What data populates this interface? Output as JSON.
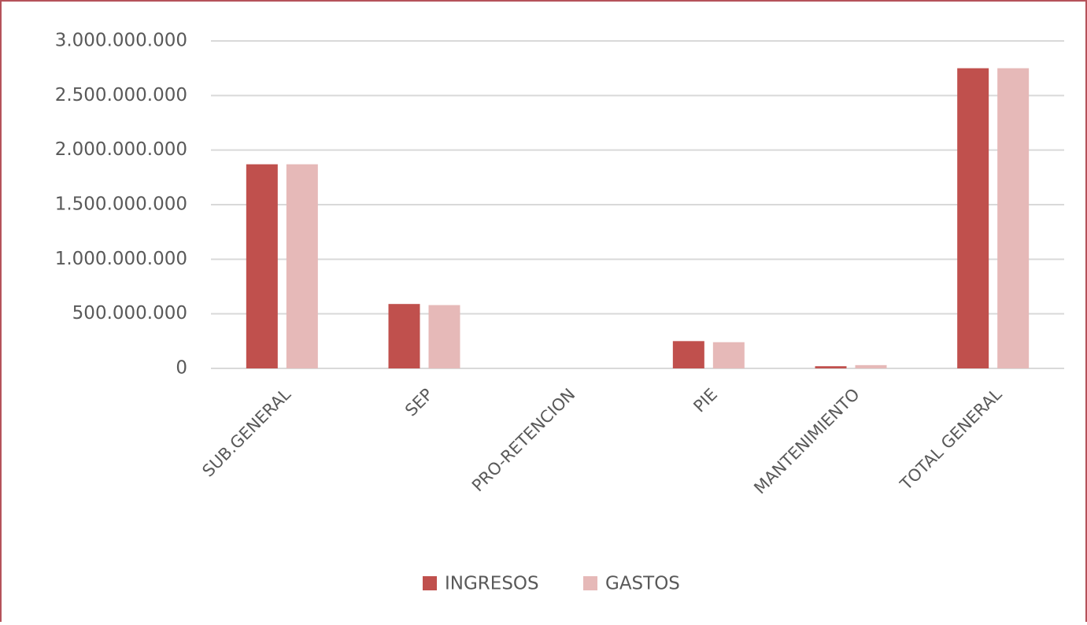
{
  "chart_data": {
    "type": "bar",
    "categories": [
      "SUB.GENERAL",
      "SEP",
      "PRO-RETENCION",
      "PIE",
      "MANTENIMIENTO",
      "TOTAL GENERAL"
    ],
    "series": [
      {
        "name": "INGRESOS",
        "color": "#c0504d",
        "values": [
          1870000000,
          590000000,
          0,
          250000000,
          20000000,
          2750000000
        ]
      },
      {
        "name": "GASTOS",
        "color": "#e6b9b8",
        "values": [
          1870000000,
          580000000,
          0,
          240000000,
          30000000,
          2750000000
        ]
      }
    ],
    "ylim": [
      0,
      3000000000
    ],
    "yticks": [
      0,
      {
        "value": 500000000,
        "label": "500.000.000"
      },
      {
        "value": 1000000000,
        "label": "1.000.000.000"
      },
      {
        "value": 1500000000,
        "label": "1.500.000.000"
      },
      {
        "value": 2000000000,
        "label": "2.000.000.000"
      },
      {
        "value": 2500000000,
        "label": "2.500.000.000"
      },
      {
        "value": 3000000000,
        "label": "3.000.000.000"
      }
    ],
    "grid": true,
    "legend": "bottom"
  }
}
